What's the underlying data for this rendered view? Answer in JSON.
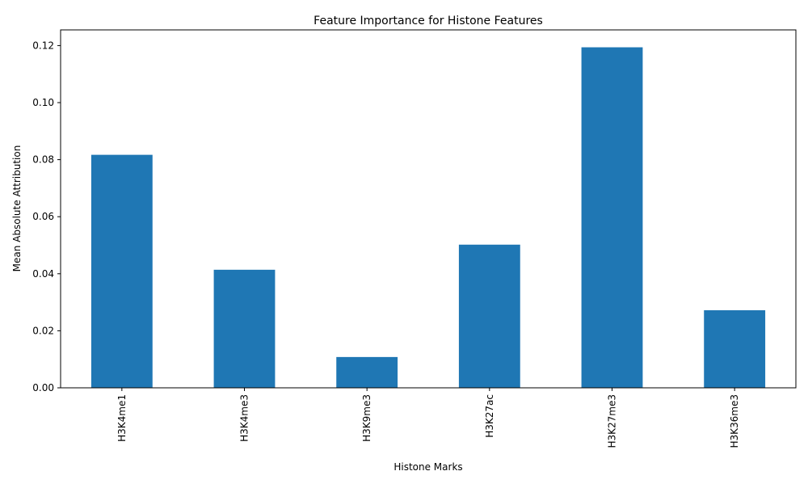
{
  "chart_data": {
    "type": "bar",
    "title": "Feature Importance for Histone Features",
    "xlabel": "Histone Marks",
    "ylabel": "Mean Absolute Attribution",
    "categories": [
      "H3K4me1",
      "H3K4me3",
      "H3K9me3",
      "H3K27ac",
      "H3K27me3",
      "H3K36me3"
    ],
    "values": [
      0.0817,
      0.0414,
      0.0108,
      0.0502,
      0.1194,
      0.0272
    ],
    "ylim": [
      0,
      0.1255
    ],
    "yticks": [
      0.0,
      0.02,
      0.04,
      0.06,
      0.08,
      0.1,
      0.12
    ],
    "ytick_labels": [
      "0.00",
      "0.02",
      "0.04",
      "0.06",
      "0.08",
      "0.10",
      "0.12"
    ],
    "bar_color": "#1f77b4",
    "grid": false,
    "legend": "none"
  }
}
